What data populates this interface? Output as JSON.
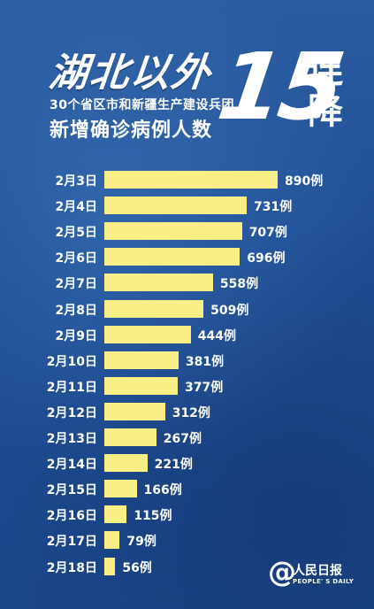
{
  "headline": {
    "line1": "湖北以外",
    "line2": "30个省区市和新疆生产建设兵团",
    "line3": "新增确诊病例人数",
    "number": "15",
    "suffix_top": "连",
    "suffix_bottom": "降"
  },
  "chart_data": {
    "type": "bar",
    "orientation": "horizontal",
    "value_suffix": "例",
    "colors": {
      "bar": "#faee87",
      "background": "#1f4e94",
      "text": "#ffffff"
    },
    "categories": [
      "2月3日",
      "2月4日",
      "2月5日",
      "2月6日",
      "2月7日",
      "2月8日",
      "2月9日",
      "2月10日",
      "2月11日",
      "2月12日",
      "2月13日",
      "2月14日",
      "2月15日",
      "2月16日",
      "2月17日",
      "2月18日"
    ],
    "values": [
      890,
      731,
      707,
      696,
      558,
      509,
      444,
      381,
      377,
      312,
      267,
      221,
      166,
      115,
      79,
      56
    ],
    "value_labels": [
      "890例",
      "731例",
      "707例",
      "696例",
      "558例",
      "509例",
      "444例",
      "381例",
      "377例",
      "312例",
      "267例",
      "221例",
      "166例",
      "115例",
      "79例",
      "56例"
    ]
  },
  "logo": {
    "symbol": "@",
    "name_cn": "人民日报",
    "name_en": "PEOPLE' S DAILY"
  }
}
